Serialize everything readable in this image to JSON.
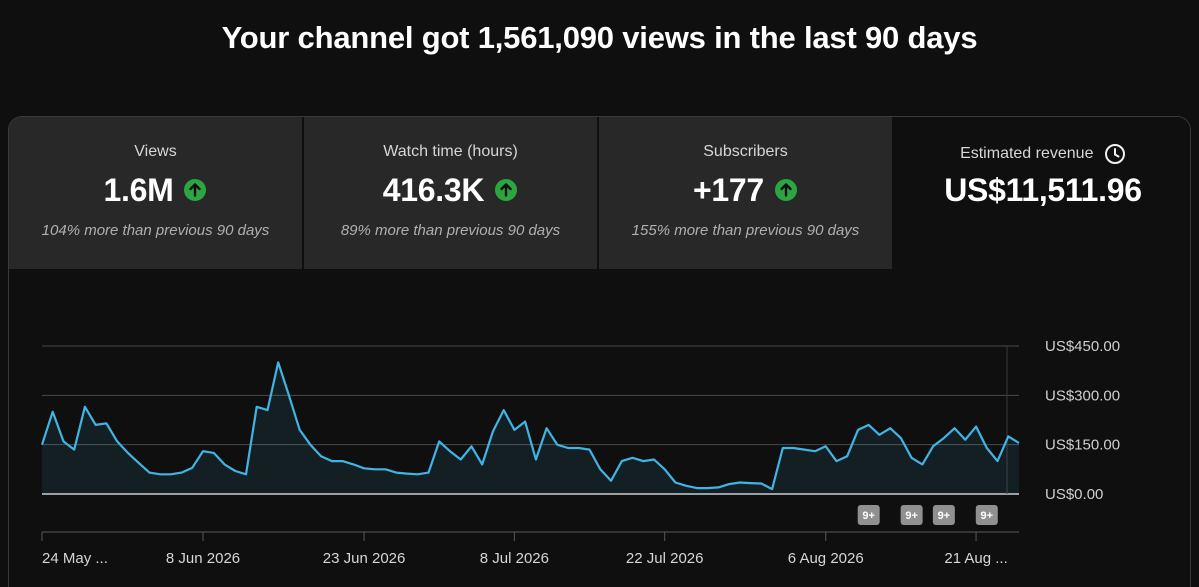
{
  "headline": "Your channel got 1,561,090 views in the last 90 days",
  "tabs": [
    {
      "label": "Views",
      "value": "1.6M",
      "trend": "up",
      "comparison": "104% more than previous 90 days"
    },
    {
      "label": "Watch time (hours)",
      "value": "416.3K",
      "trend": "up",
      "comparison": "89% more than previous 90 days"
    },
    {
      "label": "Subscribers",
      "value": "+177",
      "trend": "up",
      "comparison": "155% more than previous 90 days"
    },
    {
      "label": "Estimated revenue",
      "value": "US$11,511.96",
      "trend": "",
      "comparison": ""
    }
  ],
  "colors": {
    "line": "#41b4e6",
    "up_badge": "#2ba640",
    "selected_tab_bg": "#0f0f0f",
    "tab_bg": "#282828"
  },
  "icons": {
    "trend_up": "arrow-up-circle-icon",
    "revenue_info": "clock-icon"
  },
  "chart_data": {
    "type": "area",
    "title": "",
    "xlabel": "",
    "ylabel": "",
    "y_axis_side": "right",
    "ylim": [
      0,
      450
    ],
    "y_ticks": [
      0,
      150,
      300,
      450
    ],
    "y_tick_labels": [
      "US$0.00",
      "US$150.00",
      "US$300.00",
      "US$450.00"
    ],
    "x_tick_labels": [
      "24 May ...",
      "8 Jun 2026",
      "23 Jun 2026",
      "8 Jul 2026",
      "22 Jul 2026",
      "6 Aug 2026",
      "21 Aug ..."
    ],
    "x_tick_index": [
      0,
      15,
      30,
      44,
      58,
      73,
      87
    ],
    "series": [
      {
        "values": [
          150,
          250,
          160,
          135,
          265,
          210,
          215,
          160,
          125,
          95,
          65,
          60,
          60,
          65,
          80,
          130,
          125,
          90,
          70,
          60,
          265,
          255,
          400,
          300,
          195,
          150,
          115,
          100,
          100,
          90,
          78,
          75,
          75,
          65,
          62,
          60,
          65,
          160,
          130,
          105,
          145,
          90,
          190,
          255,
          195,
          220,
          105,
          200,
          150,
          140,
          140,
          135,
          75,
          40,
          100,
          110,
          100,
          105,
          75,
          35,
          25,
          18,
          18,
          20,
          30,
          35,
          33,
          32,
          15,
          140,
          140,
          135,
          130,
          145,
          100,
          115,
          195,
          210,
          180,
          200,
          170,
          110,
          90,
          145,
          170,
          200,
          165,
          205,
          140,
          100,
          175,
          155
        ]
      }
    ],
    "annotations": [
      {
        "label": "9+",
        "index": 77
      },
      {
        "label": "9+",
        "index": 81
      },
      {
        "label": "9+",
        "index": 84
      },
      {
        "label": "9+",
        "index": 88
      }
    ],
    "grid": true,
    "legend": "none"
  }
}
